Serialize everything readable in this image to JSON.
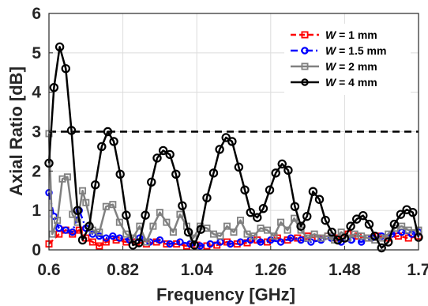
{
  "chart_data": {
    "type": "line",
    "title": "",
    "xlabel": "Frequency [GHz]",
    "ylabel": "Axial Ratio [dB]",
    "xlim": [
      0.6,
      1.7
    ],
    "ylim": [
      0,
      6
    ],
    "x_ticks": [
      "0.6",
      "0.82",
      "1.04",
      "1.26",
      "1.48",
      "1.7"
    ],
    "x_tick_values": [
      0.6,
      0.82,
      1.04,
      1.26,
      1.48,
      1.7
    ],
    "y_ticks": [
      "0",
      "1",
      "2",
      "3",
      "4",
      "5",
      "6"
    ],
    "y_tick_values": [
      0,
      1,
      2,
      3,
      4,
      5,
      6
    ],
    "grid": true,
    "legend_position": "top-right",
    "reference_line": {
      "y": 3,
      "style": "dashed",
      "color": "#000000"
    },
    "series": [
      {
        "name_prefix": "W",
        "name_suffix": " = 1 mm",
        "color": "#ff0000",
        "marker": "square",
        "line_style": "dashed",
        "points": [
          [
            0.6,
            0.15
          ],
          [
            0.63,
            0.4
          ],
          [
            0.65,
            0.5
          ],
          [
            0.67,
            0.4
          ],
          [
            0.69,
            0.5
          ],
          [
            0.71,
            0.3
          ],
          [
            0.73,
            0.2
          ],
          [
            0.75,
            0.1
          ],
          [
            0.77,
            0.2
          ],
          [
            0.8,
            0.25
          ],
          [
            0.83,
            0.2
          ],
          [
            0.86,
            0.2
          ],
          [
            0.89,
            0.15
          ],
          [
            0.92,
            0.2
          ],
          [
            0.95,
            0.15
          ],
          [
            0.98,
            0.15
          ],
          [
            1.01,
            0.1
          ],
          [
            1.04,
            0.12
          ],
          [
            1.07,
            0.1
          ],
          [
            1.1,
            0.12
          ],
          [
            1.13,
            0.2
          ],
          [
            1.16,
            0.15
          ],
          [
            1.19,
            0.18
          ],
          [
            1.22,
            0.25
          ],
          [
            1.25,
            0.2
          ],
          [
            1.28,
            0.3
          ],
          [
            1.31,
            0.25
          ],
          [
            1.34,
            0.3
          ],
          [
            1.37,
            0.35
          ],
          [
            1.4,
            0.3
          ],
          [
            1.43,
            0.35
          ],
          [
            1.46,
            0.3
          ],
          [
            1.49,
            0.4
          ],
          [
            1.52,
            0.35
          ],
          [
            1.55,
            0.3
          ],
          [
            1.58,
            0.35
          ],
          [
            1.61,
            0.3
          ],
          [
            1.64,
            0.35
          ],
          [
            1.67,
            0.3
          ],
          [
            1.7,
            0.35
          ]
        ]
      },
      {
        "name_prefix": "W",
        "name_suffix": " = 1.5 mm",
        "color": "#0000ff",
        "marker": "circle",
        "line_style": "dashdot",
        "points": [
          [
            0.6,
            1.45
          ],
          [
            0.615,
            0.85
          ],
          [
            0.63,
            0.55
          ],
          [
            0.65,
            0.5
          ],
          [
            0.67,
            0.45
          ],
          [
            0.69,
            1.0
          ],
          [
            0.71,
            0.55
          ],
          [
            0.73,
            0.4
          ],
          [
            0.75,
            0.35
          ],
          [
            0.77,
            0.3
          ],
          [
            0.79,
            0.35
          ],
          [
            0.81,
            0.3
          ],
          [
            0.84,
            0.25
          ],
          [
            0.87,
            0.3
          ],
          [
            0.9,
            0.2
          ],
          [
            0.93,
            0.25
          ],
          [
            0.96,
            0.15
          ],
          [
            0.99,
            0.2
          ],
          [
            1.02,
            0.15
          ],
          [
            1.05,
            0.1
          ],
          [
            1.08,
            0.15
          ],
          [
            1.11,
            0.2
          ],
          [
            1.14,
            0.15
          ],
          [
            1.17,
            0.2
          ],
          [
            1.2,
            0.25
          ],
          [
            1.23,
            0.2
          ],
          [
            1.26,
            0.25
          ],
          [
            1.29,
            0.2
          ],
          [
            1.32,
            0.3
          ],
          [
            1.35,
            0.25
          ],
          [
            1.38,
            0.2
          ],
          [
            1.41,
            0.25
          ],
          [
            1.44,
            0.3
          ],
          [
            1.47,
            0.2
          ],
          [
            1.5,
            0.25
          ],
          [
            1.53,
            0.2
          ],
          [
            1.56,
            0.3
          ],
          [
            1.59,
            0.35
          ],
          [
            1.62,
            0.4
          ],
          [
            1.65,
            0.45
          ],
          [
            1.68,
            0.4
          ],
          [
            1.7,
            0.45
          ]
        ]
      },
      {
        "name_prefix": "W",
        "name_suffix": " = 2 mm",
        "color": "#808080",
        "marker": "square",
        "line_style": "solid",
        "points": [
          [
            0.6,
            2.95
          ],
          [
            0.61,
            0.4
          ],
          [
            0.625,
            0.75
          ],
          [
            0.64,
            1.8
          ],
          [
            0.655,
            1.85
          ],
          [
            0.67,
            0.9
          ],
          [
            0.685,
            0.7
          ],
          [
            0.7,
            1.5
          ],
          [
            0.71,
            1.2
          ],
          [
            0.73,
            0.5
          ],
          [
            0.75,
            0.45
          ],
          [
            0.77,
            1.1
          ],
          [
            0.79,
            1.15
          ],
          [
            0.81,
            0.7
          ],
          [
            0.83,
            0.4
          ],
          [
            0.85,
            0.3
          ],
          [
            0.87,
            0.6
          ],
          [
            0.89,
            0.2
          ],
          [
            0.91,
            0.6
          ],
          [
            0.93,
            0.95
          ],
          [
            0.95,
            0.7
          ],
          [
            0.97,
            0.45
          ],
          [
            0.99,
            0.9
          ],
          [
            1.01,
            0.6
          ],
          [
            1.03,
            0.3
          ],
          [
            1.05,
            0.6
          ],
          [
            1.07,
            0.55
          ],
          [
            1.09,
            0.4
          ],
          [
            1.11,
            0.35
          ],
          [
            1.13,
            0.6
          ],
          [
            1.15,
            0.45
          ],
          [
            1.17,
            0.75
          ],
          [
            1.19,
            0.4
          ],
          [
            1.21,
            0.35
          ],
          [
            1.23,
            0.55
          ],
          [
            1.25,
            0.5
          ],
          [
            1.27,
            0.35
          ],
          [
            1.29,
            0.7
          ],
          [
            1.31,
            0.5
          ],
          [
            1.33,
            0.8
          ],
          [
            1.35,
            0.5
          ],
          [
            1.37,
            0.3
          ],
          [
            1.39,
            0.4
          ],
          [
            1.41,
            0.3
          ],
          [
            1.43,
            0.35
          ],
          [
            1.45,
            0.25
          ],
          [
            1.47,
            0.45
          ],
          [
            1.49,
            0.3
          ],
          [
            1.51,
            0.4
          ],
          [
            1.53,
            0.35
          ],
          [
            1.55,
            0.3
          ],
          [
            1.57,
            0.25
          ],
          [
            1.59,
            0.3
          ],
          [
            1.61,
            0.4
          ],
          [
            1.63,
            0.55
          ],
          [
            1.65,
            0.6
          ],
          [
            1.67,
            0.5
          ],
          [
            1.7,
            0.5
          ]
        ]
      },
      {
        "name_prefix": "W",
        "name_suffix": " = 4 mm",
        "color": "#000000",
        "marker": "circle",
        "line_style": "solid",
        "points": [
          [
            0.6,
            2.2
          ],
          [
            0.615,
            4.12
          ],
          [
            0.632,
            5.15
          ],
          [
            0.65,
            4.6
          ],
          [
            0.667,
            3.03
          ],
          [
            0.685,
            1.0
          ],
          [
            0.7,
            0.25
          ],
          [
            0.72,
            0.6
          ],
          [
            0.738,
            1.65
          ],
          [
            0.757,
            2.62
          ],
          [
            0.775,
            3.0
          ],
          [
            0.793,
            2.75
          ],
          [
            0.812,
            1.92
          ],
          [
            0.83,
            0.88
          ],
          [
            0.85,
            0.12
          ],
          [
            0.868,
            0.18
          ],
          [
            0.887,
            0.88
          ],
          [
            0.905,
            1.72
          ],
          [
            0.922,
            2.33
          ],
          [
            0.94,
            2.52
          ],
          [
            0.96,
            2.42
          ],
          [
            0.978,
            1.92
          ],
          [
            0.997,
            1.12
          ],
          [
            1.015,
            0.45
          ],
          [
            1.033,
            0.12
          ],
          [
            1.052,
            0.52
          ],
          [
            1.07,
            1.32
          ],
          [
            1.09,
            1.95
          ],
          [
            1.108,
            2.55
          ],
          [
            1.127,
            2.85
          ],
          [
            1.145,
            2.75
          ],
          [
            1.165,
            2.1
          ],
          [
            1.183,
            1.52
          ],
          [
            1.2,
            0.95
          ],
          [
            1.22,
            0.82
          ],
          [
            1.238,
            1.05
          ],
          [
            1.257,
            1.52
          ],
          [
            1.275,
            1.95
          ],
          [
            1.294,
            2.18
          ],
          [
            1.312,
            2.02
          ],
          [
            1.332,
            1.1
          ],
          [
            1.35,
            0.6
          ],
          [
            1.368,
            0.85
          ],
          [
            1.386,
            1.48
          ],
          [
            1.405,
            1.28
          ],
          [
            1.423,
            0.75
          ],
          [
            1.442,
            0.45
          ],
          [
            1.46,
            0.25
          ],
          [
            1.48,
            0.3
          ],
          [
            1.498,
            0.6
          ],
          [
            1.516,
            0.78
          ],
          [
            1.535,
            0.87
          ],
          [
            1.553,
            0.65
          ],
          [
            1.57,
            0.35
          ],
          [
            1.59,
            0.05
          ],
          [
            1.61,
            0.2
          ],
          [
            1.628,
            0.65
          ],
          [
            1.647,
            0.9
          ],
          [
            1.665,
            1.02
          ],
          [
            1.683,
            0.95
          ],
          [
            1.7,
            0.32
          ]
        ]
      }
    ]
  }
}
